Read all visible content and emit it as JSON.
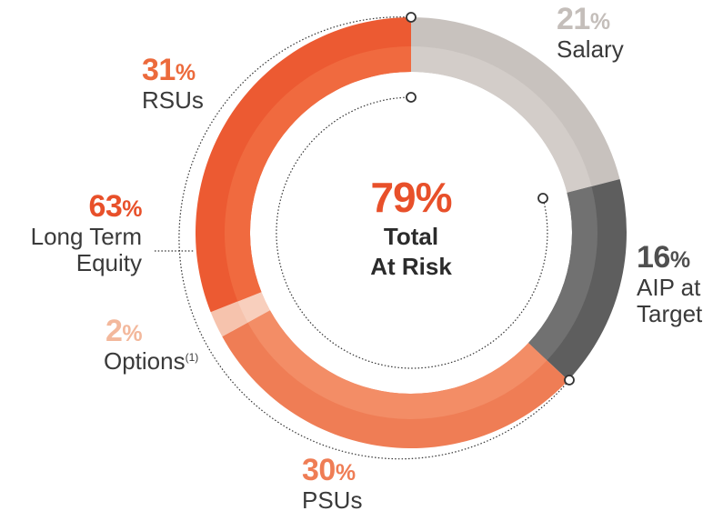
{
  "chart_data": {
    "type": "pie",
    "variant": "donut",
    "center": {
      "value": "79%",
      "label_line1": "Total",
      "label_line2": "At Risk"
    },
    "slices": [
      {
        "pct": "21",
        "label": "Salary",
        "value": 21,
        "color": "#c8c2be",
        "color_inner": "#d3cdc9"
      },
      {
        "pct": "16",
        "label_line1": "AIP at",
        "label_line2": "Target",
        "value": 16,
        "color": "#5e5e5e",
        "color_inner": "#717171"
      },
      {
        "pct": "30",
        "label": "PSUs",
        "value": 30,
        "color": "#ef7d55",
        "color_inner": "#f38d66"
      },
      {
        "pct": "2",
        "label": "Options",
        "footnote": "(1)",
        "value": 2,
        "color": "#f6c3ad",
        "color_inner": "#f8cfbd"
      },
      {
        "pct": "31",
        "label": "RSUs",
        "value": 31,
        "color": "#ec5a32",
        "color_inner": "#f06a3f"
      }
    ],
    "group": {
      "pct": "63",
      "label_line1": "Long Term",
      "label_line2": "Equity",
      "color": "#e8502a"
    }
  },
  "pct_sign": "%",
  "colors": {
    "center": "#e8502a",
    "rsu_label": "#ec6a3c",
    "psu_label": "#ef7d55",
    "options_label": "#f3b89c",
    "salary_label": "#c4beba",
    "aip_label": "#4f4f4f"
  }
}
